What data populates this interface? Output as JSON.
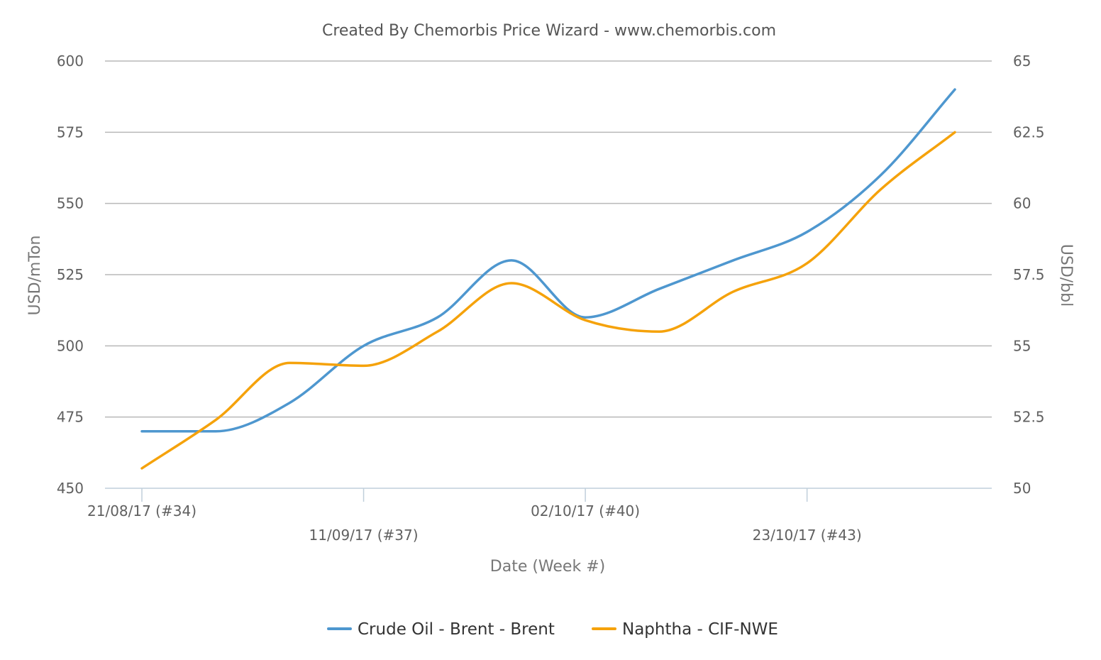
{
  "chart_data": {
    "type": "line",
    "title": "Created By Chemorbis Price Wizard - www.chemorbis.com",
    "xlabel": "Date (Week #)",
    "ylabel": "USD/mTon",
    "y2label": "USD/bbl",
    "ylim": [
      450,
      600
    ],
    "y2lim": [
      50,
      65
    ],
    "yticks": [
      "450",
      "475",
      "500",
      "525",
      "550",
      "575",
      "600"
    ],
    "y2ticks": [
      "50",
      "52.5",
      "55",
      "57.5",
      "60",
      "62.5",
      "65"
    ],
    "x": [
      "2017-08-21",
      "2017-08-28",
      "2017-09-04",
      "2017-09-11",
      "2017-09-18",
      "2017-09-25",
      "2017-10-02",
      "2017-10-09",
      "2017-10-16",
      "2017-10-23",
      "2017-10-30",
      "2017-11-06"
    ],
    "xticks": [
      {
        "x": "2017-08-21",
        "label": "21/08/17 (#34)"
      },
      {
        "x": "2017-09-11",
        "label": "11/09/17 (#37)"
      },
      {
        "x": "2017-10-02",
        "label": "02/10/17 (#40)"
      },
      {
        "x": "2017-10-23",
        "label": "23/10/17 (#43)"
      }
    ],
    "series": [
      {
        "name": "Crude Oil - Brent - Brent",
        "color": "#4e97cf",
        "axis": "left",
        "values": [
          470,
          470,
          480,
          500,
          510,
          530,
          510,
          520,
          530,
          540,
          560,
          590
        ]
      },
      {
        "name": "Naphtha - CIF-NWE",
        "color": "#f5a20b",
        "axis": "left",
        "values": [
          457,
          474,
          494,
          493,
          505,
          522,
          509,
          505,
          519,
          529,
          555,
          575
        ]
      }
    ],
    "grid": true,
    "legend": "bottom-center"
  }
}
